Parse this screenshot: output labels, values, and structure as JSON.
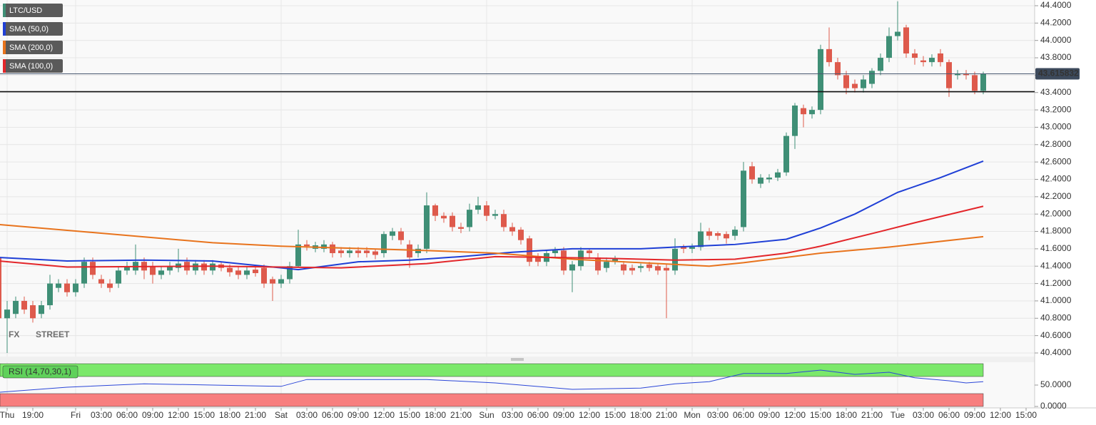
{
  "chart_data": [
    {
      "type": "candlestick",
      "categories": [
        null,
        "Thu",
        null,
        null,
        "19:00",
        null,
        null,
        null,
        null,
        "Fri",
        null,
        null,
        "03:00",
        null,
        null,
        "06:00",
        null,
        null,
        "09:00",
        null,
        null,
        "12:00",
        null,
        null,
        "15:00",
        null,
        null,
        "18:00",
        null,
        null,
        "21:00",
        null,
        null,
        "Sat",
        null,
        null,
        "03:00",
        null,
        null,
        "06:00",
        null,
        null,
        "09:00",
        null,
        null,
        "12:00",
        null,
        null,
        "15:00",
        null,
        null,
        "18:00",
        null,
        null,
        "21:00",
        null,
        null,
        "Sun",
        null,
        null,
        "03:00",
        null,
        null,
        "06:00",
        null,
        null,
        "09:00",
        null,
        null,
        "12:00",
        null,
        null,
        "15:00",
        null,
        null,
        "18:00",
        null,
        null,
        "21:00",
        null,
        null,
        "Mon",
        null,
        null,
        "03:00",
        null,
        null,
        "06:00",
        null,
        null,
        "09:00",
        null,
        null,
        "12:00",
        null,
        null,
        "15:00",
        null,
        null,
        "18:00",
        null,
        null,
        "21:00",
        null,
        null,
        "Tue",
        null,
        null,
        "03:00",
        null,
        null,
        "06:00",
        null,
        null,
        "09:00",
        null,
        null,
        "12:00",
        null,
        null,
        "15:00"
      ],
      "series": [
        {
          "name": "LTC/USD",
          "up_color": "#3f8f76",
          "down_color": "#de5a4c",
          "open": [
            41.5,
            40.8,
            40.85,
            41.0,
            40.95,
            40.85,
            40.95,
            41.15,
            41.2,
            41.1,
            41.2,
            41.45,
            41.25,
            41.2,
            41.2,
            41.35,
            41.35,
            41.45,
            41.4,
            41.3,
            41.35,
            41.38,
            41.45,
            41.35,
            41.43,
            41.35,
            41.42,
            41.38,
            41.35,
            41.3,
            41.36,
            41.38,
            41.25,
            41.2,
            41.25,
            41.4,
            41.65,
            41.6,
            41.6,
            41.65,
            41.58,
            41.55,
            41.58,
            41.58,
            41.57,
            41.55,
            41.75,
            41.8,
            41.65,
            41.55,
            41.6,
            42.1,
            41.98,
            41.98,
            41.85,
            41.85,
            42.05,
            42.1,
            41.98,
            42.0,
            41.85,
            41.82,
            41.72,
            41.5,
            41.45,
            41.55,
            41.58,
            41.35,
            41.4,
            41.58,
            41.5,
            41.38,
            41.45,
            41.42,
            41.38,
            41.38,
            41.42,
            41.4,
            41.38,
            41.35,
            41.62,
            41.6,
            41.62,
            41.8,
            41.78,
            41.77,
            41.75,
            41.85,
            42.55,
            42.35,
            42.4,
            42.42,
            42.48,
            42.9,
            43.22,
            43.15,
            43.2,
            43.9,
            43.75,
            43.6,
            43.5,
            43.45,
            43.5,
            43.65,
            43.8,
            44.05,
            44.15,
            43.85,
            43.77,
            43.75,
            43.85,
            43.75,
            43.6,
            43.62,
            43.6,
            43.42,
            null,
            null,
            null,
            null,
            null
          ],
          "high": [
            41.55,
            41.0,
            41.05,
            41.05,
            41.0,
            41.0,
            41.3,
            41.25,
            41.25,
            41.25,
            41.5,
            41.5,
            41.3,
            41.25,
            41.4,
            41.45,
            41.65,
            41.5,
            41.45,
            41.4,
            41.45,
            41.6,
            41.5,
            41.47,
            41.47,
            41.47,
            41.45,
            41.42,
            41.4,
            41.4,
            41.4,
            41.42,
            41.28,
            41.3,
            41.45,
            41.82,
            41.7,
            41.68,
            41.7,
            41.68,
            41.62,
            41.62,
            41.62,
            41.62,
            41.6,
            41.8,
            41.84,
            41.84,
            41.7,
            41.65,
            42.25,
            42.12,
            42.02,
            42.02,
            41.9,
            42.12,
            42.2,
            42.15,
            42.05,
            42.05,
            41.9,
            41.85,
            41.75,
            41.55,
            41.58,
            41.62,
            41.62,
            41.46,
            41.62,
            41.6,
            41.55,
            41.5,
            41.52,
            41.46,
            41.42,
            41.43,
            41.45,
            41.43,
            41.42,
            41.72,
            41.65,
            41.66,
            41.9,
            41.84,
            41.8,
            41.8,
            41.86,
            42.6,
            42.6,
            42.46,
            42.46,
            42.52,
            42.94,
            43.28,
            43.26,
            43.24,
            43.95,
            44.15,
            43.8,
            43.65,
            43.55,
            43.6,
            43.68,
            43.85,
            44.15,
            44.45,
            44.18,
            43.9,
            43.82,
            43.84,
            43.9,
            43.78,
            43.66,
            43.66,
            43.64,
            43.64,
            null,
            null,
            null,
            null,
            null
          ],
          "low": [
            40.75,
            40.4,
            40.8,
            40.85,
            40.75,
            40.8,
            40.9,
            41.1,
            41.05,
            41.05,
            41.15,
            41.25,
            41.15,
            41.1,
            41.15,
            41.3,
            41.3,
            41.25,
            41.2,
            41.25,
            41.3,
            41.33,
            41.3,
            41.3,
            41.3,
            41.3,
            41.34,
            41.28,
            41.25,
            41.25,
            41.28,
            41.15,
            41.0,
            41.15,
            41.2,
            41.38,
            41.58,
            41.56,
            41.56,
            41.5,
            41.5,
            41.5,
            41.5,
            41.5,
            41.48,
            41.5,
            41.7,
            41.65,
            41.38,
            41.5,
            41.55,
            41.92,
            41.9,
            41.8,
            41.78,
            41.8,
            42.0,
            41.92,
            41.94,
            41.8,
            41.75,
            41.65,
            41.4,
            41.4,
            41.4,
            41.5,
            41.3,
            41.1,
            41.35,
            41.5,
            41.3,
            41.33,
            41.42,
            41.3,
            41.3,
            41.33,
            41.34,
            41.3,
            40.8,
            41.3,
            41.55,
            41.55,
            41.58,
            41.7,
            41.7,
            41.66,
            41.7,
            41.8,
            42.35,
            42.3,
            42.36,
            42.38,
            42.44,
            42.75,
            43.0,
            43.1,
            43.15,
            43.7,
            43.55,
            43.38,
            43.4,
            43.4,
            43.45,
            43.6,
            43.75,
            44.0,
            43.8,
            43.72,
            43.7,
            43.7,
            43.7,
            43.35,
            43.55,
            43.55,
            43.38,
            43.38,
            null,
            null,
            null,
            null,
            null
          ],
          "close": [
            40.8,
            40.9,
            41.0,
            40.9,
            40.8,
            40.95,
            41.2,
            41.2,
            41.1,
            41.2,
            41.45,
            41.3,
            41.2,
            41.15,
            41.35,
            41.4,
            41.45,
            41.35,
            41.3,
            41.35,
            41.4,
            41.43,
            41.35,
            41.43,
            41.35,
            41.43,
            41.38,
            41.33,
            41.3,
            41.35,
            41.32,
            41.2,
            41.2,
            41.25,
            41.4,
            41.65,
            41.63,
            41.64,
            41.65,
            41.55,
            41.55,
            41.58,
            41.55,
            41.55,
            41.53,
            41.77,
            41.8,
            41.7,
            41.5,
            41.6,
            42.1,
            41.98,
            41.95,
            41.85,
            41.83,
            42.05,
            42.1,
            41.98,
            42.0,
            41.85,
            41.8,
            41.7,
            41.45,
            41.45,
            41.55,
            41.58,
            41.35,
            41.42,
            41.58,
            41.55,
            41.35,
            41.45,
            41.48,
            41.35,
            41.35,
            41.4,
            41.38,
            41.35,
            41.35,
            41.6,
            41.6,
            41.62,
            41.8,
            41.75,
            41.75,
            41.72,
            41.82,
            42.5,
            42.4,
            42.42,
            42.42,
            42.48,
            42.9,
            43.25,
            43.15,
            43.2,
            43.9,
            43.75,
            43.6,
            43.45,
            43.45,
            43.55,
            43.65,
            43.8,
            44.05,
            44.1,
            43.85,
            43.8,
            43.75,
            43.8,
            43.75,
            43.45,
            43.62,
            43.6,
            43.42,
            43.615832,
            null,
            null,
            null,
            null,
            null
          ]
        }
      ],
      "lines": [
        {
          "name": "SMA (50,0)",
          "color": "#1f3fd6",
          "x": [
            0,
            8,
            17,
            25,
            33,
            35,
            42,
            48,
            54,
            60,
            67,
            75,
            79,
            86,
            92,
            96,
            100,
            105,
            110,
            115
          ],
          "values": [
            41.5,
            41.46,
            41.47,
            41.46,
            41.38,
            41.36,
            41.45,
            41.47,
            41.51,
            41.56,
            41.6,
            41.6,
            41.62,
            41.65,
            41.71,
            41.84,
            42.0,
            42.25,
            42.42,
            42.61
          ]
        },
        {
          "name": "SMA (200,0)",
          "color": "#e8731c",
          "x": [
            0,
            25,
            33,
            50,
            58,
            67,
            75,
            83,
            87,
            96,
            104,
            115
          ],
          "values": [
            41.88,
            41.67,
            41.63,
            41.58,
            41.55,
            41.48,
            41.44,
            41.4,
            41.44,
            41.55,
            41.62,
            41.74
          ]
        },
        {
          "name": "SMA (100,0)",
          "color": "#e3262a",
          "x": [
            0,
            8,
            25,
            40,
            50,
            58,
            71,
            79,
            86,
            92,
            96,
            103,
            107,
            115
          ],
          "values": [
            41.46,
            41.39,
            41.4,
            41.38,
            41.43,
            41.51,
            41.49,
            41.47,
            41.48,
            41.55,
            41.63,
            41.8,
            41.9,
            42.09
          ]
        }
      ],
      "last_price": 43.615832,
      "support_line": 43.41,
      "watermark": [
        "FX",
        "STREET"
      ],
      "ylim": [
        40.4,
        44.4
      ],
      "yticks": [
        {
          "value": 40.4,
          "label": "40.4000"
        },
        {
          "value": 40.6,
          "label": "40.6000"
        },
        {
          "value": 40.8,
          "label": "40.8000"
        },
        {
          "value": 41.0,
          "label": "41.0000"
        },
        {
          "value": 41.2,
          "label": "41.2000"
        },
        {
          "value": 41.4,
          "label": "41.4000"
        },
        {
          "value": 41.6,
          "label": "41.6000"
        },
        {
          "value": 41.8,
          "label": "41.8000"
        },
        {
          "value": 42.0,
          "label": "42.0000"
        },
        {
          "value": 42.2,
          "label": "42.2000"
        },
        {
          "value": 42.4,
          "label": "42.4000"
        },
        {
          "value": 42.6,
          "label": "42.6000"
        },
        {
          "value": 42.8,
          "label": "42.8000"
        },
        {
          "value": 43.0,
          "label": "43.0000"
        },
        {
          "value": 43.2,
          "label": "43.2000"
        },
        {
          "value": 43.4,
          "label": "43.4000"
        },
        {
          "value": 43.6,
          "label": "43.6000"
        },
        {
          "value": 43.8,
          "label": "43.8000"
        },
        {
          "value": 44.0,
          "label": "44.0000"
        },
        {
          "value": 44.2,
          "label": "44.2000"
        },
        {
          "value": 44.4,
          "label": "44.4000"
        }
      ],
      "grid": true
    },
    {
      "type": "line",
      "name": "RSI (14,70,30,1)",
      "color": "#2b46d8",
      "x": [
        0,
        8,
        17,
        25,
        33,
        36,
        50,
        58,
        67,
        75,
        79,
        83,
        87,
        92,
        96,
        100,
        104,
        107,
        111,
        113,
        115
      ],
      "values": [
        33,
        45,
        53,
        50,
        47,
        63,
        63,
        55,
        40,
        43,
        53,
        58,
        77,
        77,
        85,
        75,
        80,
        67,
        60,
        55,
        58
      ],
      "upper_band": 70,
      "lower_band": 30,
      "ylim": [
        0,
        100
      ],
      "yticks": [
        {
          "value": 0,
          "label": "0.0000"
        },
        {
          "value": 50,
          "label": "50.0000"
        }
      ]
    }
  ]
}
